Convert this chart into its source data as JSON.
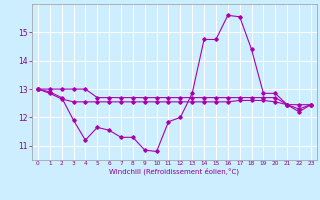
{
  "xlabel": "Windchill (Refroidissement éolien,°C)",
  "bg_color": "#cceeff",
  "grid_color": "#ffffff",
  "line_color": "#aa00aa",
  "x": [
    0,
    1,
    2,
    3,
    4,
    5,
    6,
    7,
    8,
    9,
    10,
    11,
    12,
    13,
    14,
    15,
    16,
    17,
    18,
    19,
    20,
    21,
    22,
    23
  ],
  "series1": [
    13.0,
    12.9,
    12.7,
    11.9,
    11.2,
    11.65,
    11.55,
    11.3,
    11.3,
    10.85,
    10.8,
    11.85,
    12.0,
    12.85,
    14.75,
    14.75,
    15.6,
    15.55,
    14.4,
    12.85,
    12.85,
    12.45,
    12.2,
    12.45
  ],
  "series2": [
    13.0,
    12.85,
    12.65,
    12.55,
    12.55,
    12.55,
    12.55,
    12.55,
    12.55,
    12.55,
    12.55,
    12.55,
    12.55,
    12.55,
    12.55,
    12.55,
    12.55,
    12.6,
    12.6,
    12.6,
    12.55,
    12.45,
    12.3,
    12.45
  ],
  "series3": [
    13.0,
    13.0,
    13.0,
    13.0,
    13.0,
    12.7,
    12.7,
    12.7,
    12.7,
    12.7,
    12.7,
    12.7,
    12.7,
    12.7,
    12.7,
    12.7,
    12.7,
    12.7,
    12.7,
    12.7,
    12.7,
    12.45,
    12.45,
    12.45
  ],
  "ylim": [
    10.5,
    16.0
  ],
  "yticks": [
    11,
    12,
    13,
    14,
    15
  ],
  "xticks": [
    0,
    1,
    2,
    3,
    4,
    5,
    6,
    7,
    8,
    9,
    10,
    11,
    12,
    13,
    14,
    15,
    16,
    17,
    18,
    19,
    20,
    21,
    22,
    23
  ]
}
